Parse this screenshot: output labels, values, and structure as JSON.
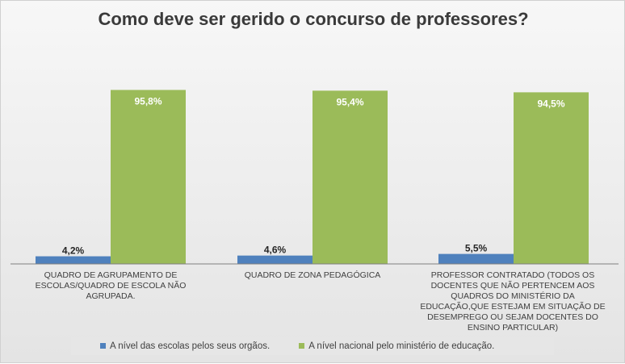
{
  "chart_data": {
    "type": "bar",
    "title": "Como deve ser gerido o concurso de professores?",
    "categories": [
      "QUADRO DE AGRUPAMENTO DE ESCOLAS/QUADRO DE ESCOLA NÃO AGRUPADA.",
      "QUADRO DE ZONA PEDAGÓGICA",
      "PROFESSOR CONTRATADO (TODOS OS DOCENTES QUE NÃO PERTENCEM AOS QUADROS DO MINISTÉRIO DA EDUCAÇÃO,QUE ESTEJAM EM SITUAÇÃO DE DESEMPREGO OU SEJAM DOCENTES DO ENSINO PARTICULAR)"
    ],
    "series": [
      {
        "name": "A nível das escolas pelos seus orgãos.",
        "values": [
          4.2,
          4.6,
          5.5
        ],
        "labels": [
          "4,2%",
          "4,6%",
          "5,5%"
        ],
        "color": "#4f81bd"
      },
      {
        "name": "A nível nacional pelo ministério de educação.",
        "values": [
          95.8,
          95.4,
          94.5
        ],
        "labels": [
          "95,8%",
          "95,4%",
          "94,5%"
        ],
        "color": "#9bbb59"
      }
    ],
    "ylim": [
      0,
      100
    ],
    "grid": false,
    "legend_position": "bottom"
  }
}
